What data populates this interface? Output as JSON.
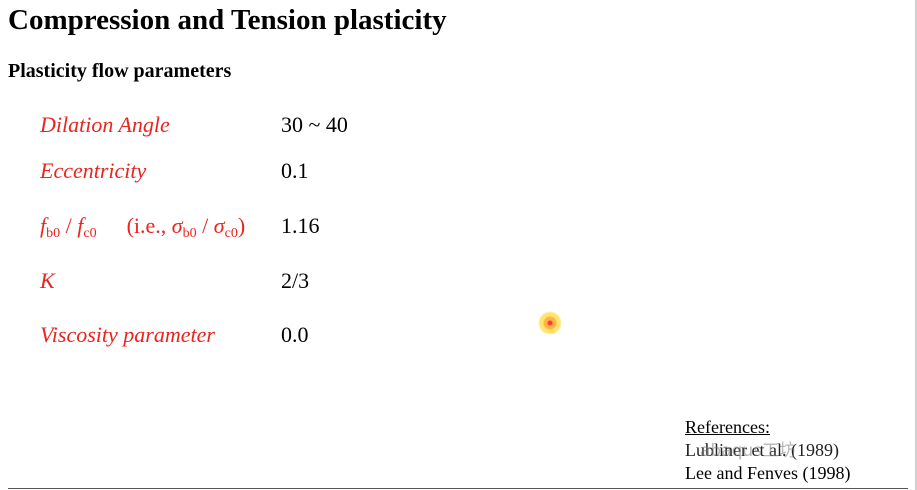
{
  "title": "Compression and Tension plasticity",
  "subtitle": "Plasticity flow parameters",
  "params": [
    {
      "name": "Dilation Angle",
      "value": "30 ~ 40"
    },
    {
      "name": "Eccentricity",
      "value": "0.1"
    },
    {
      "name": "fb0 / fc0 (i.e., σb0 / σc0)",
      "value": "1.16"
    },
    {
      "name": "K",
      "value": "2/3"
    },
    {
      "name": "Viscosity parameter",
      "value": "0.0"
    }
  ],
  "fb_expr": {
    "f": "f",
    "b0": "b0",
    "slash": " / ",
    "c0": "c0",
    "ie_open": "(i.e., ",
    "sigma": "σ",
    "ie_close": ")"
  },
  "references": {
    "heading": "References:",
    "line1": "Lubliner et al. (1989)",
    "line2": "Lee and Fenves (1998)"
  },
  "watermark": "abaqus工坊",
  "colors": {
    "param_name": "#e8251f",
    "text": "#000000",
    "background": "#ffffff"
  }
}
